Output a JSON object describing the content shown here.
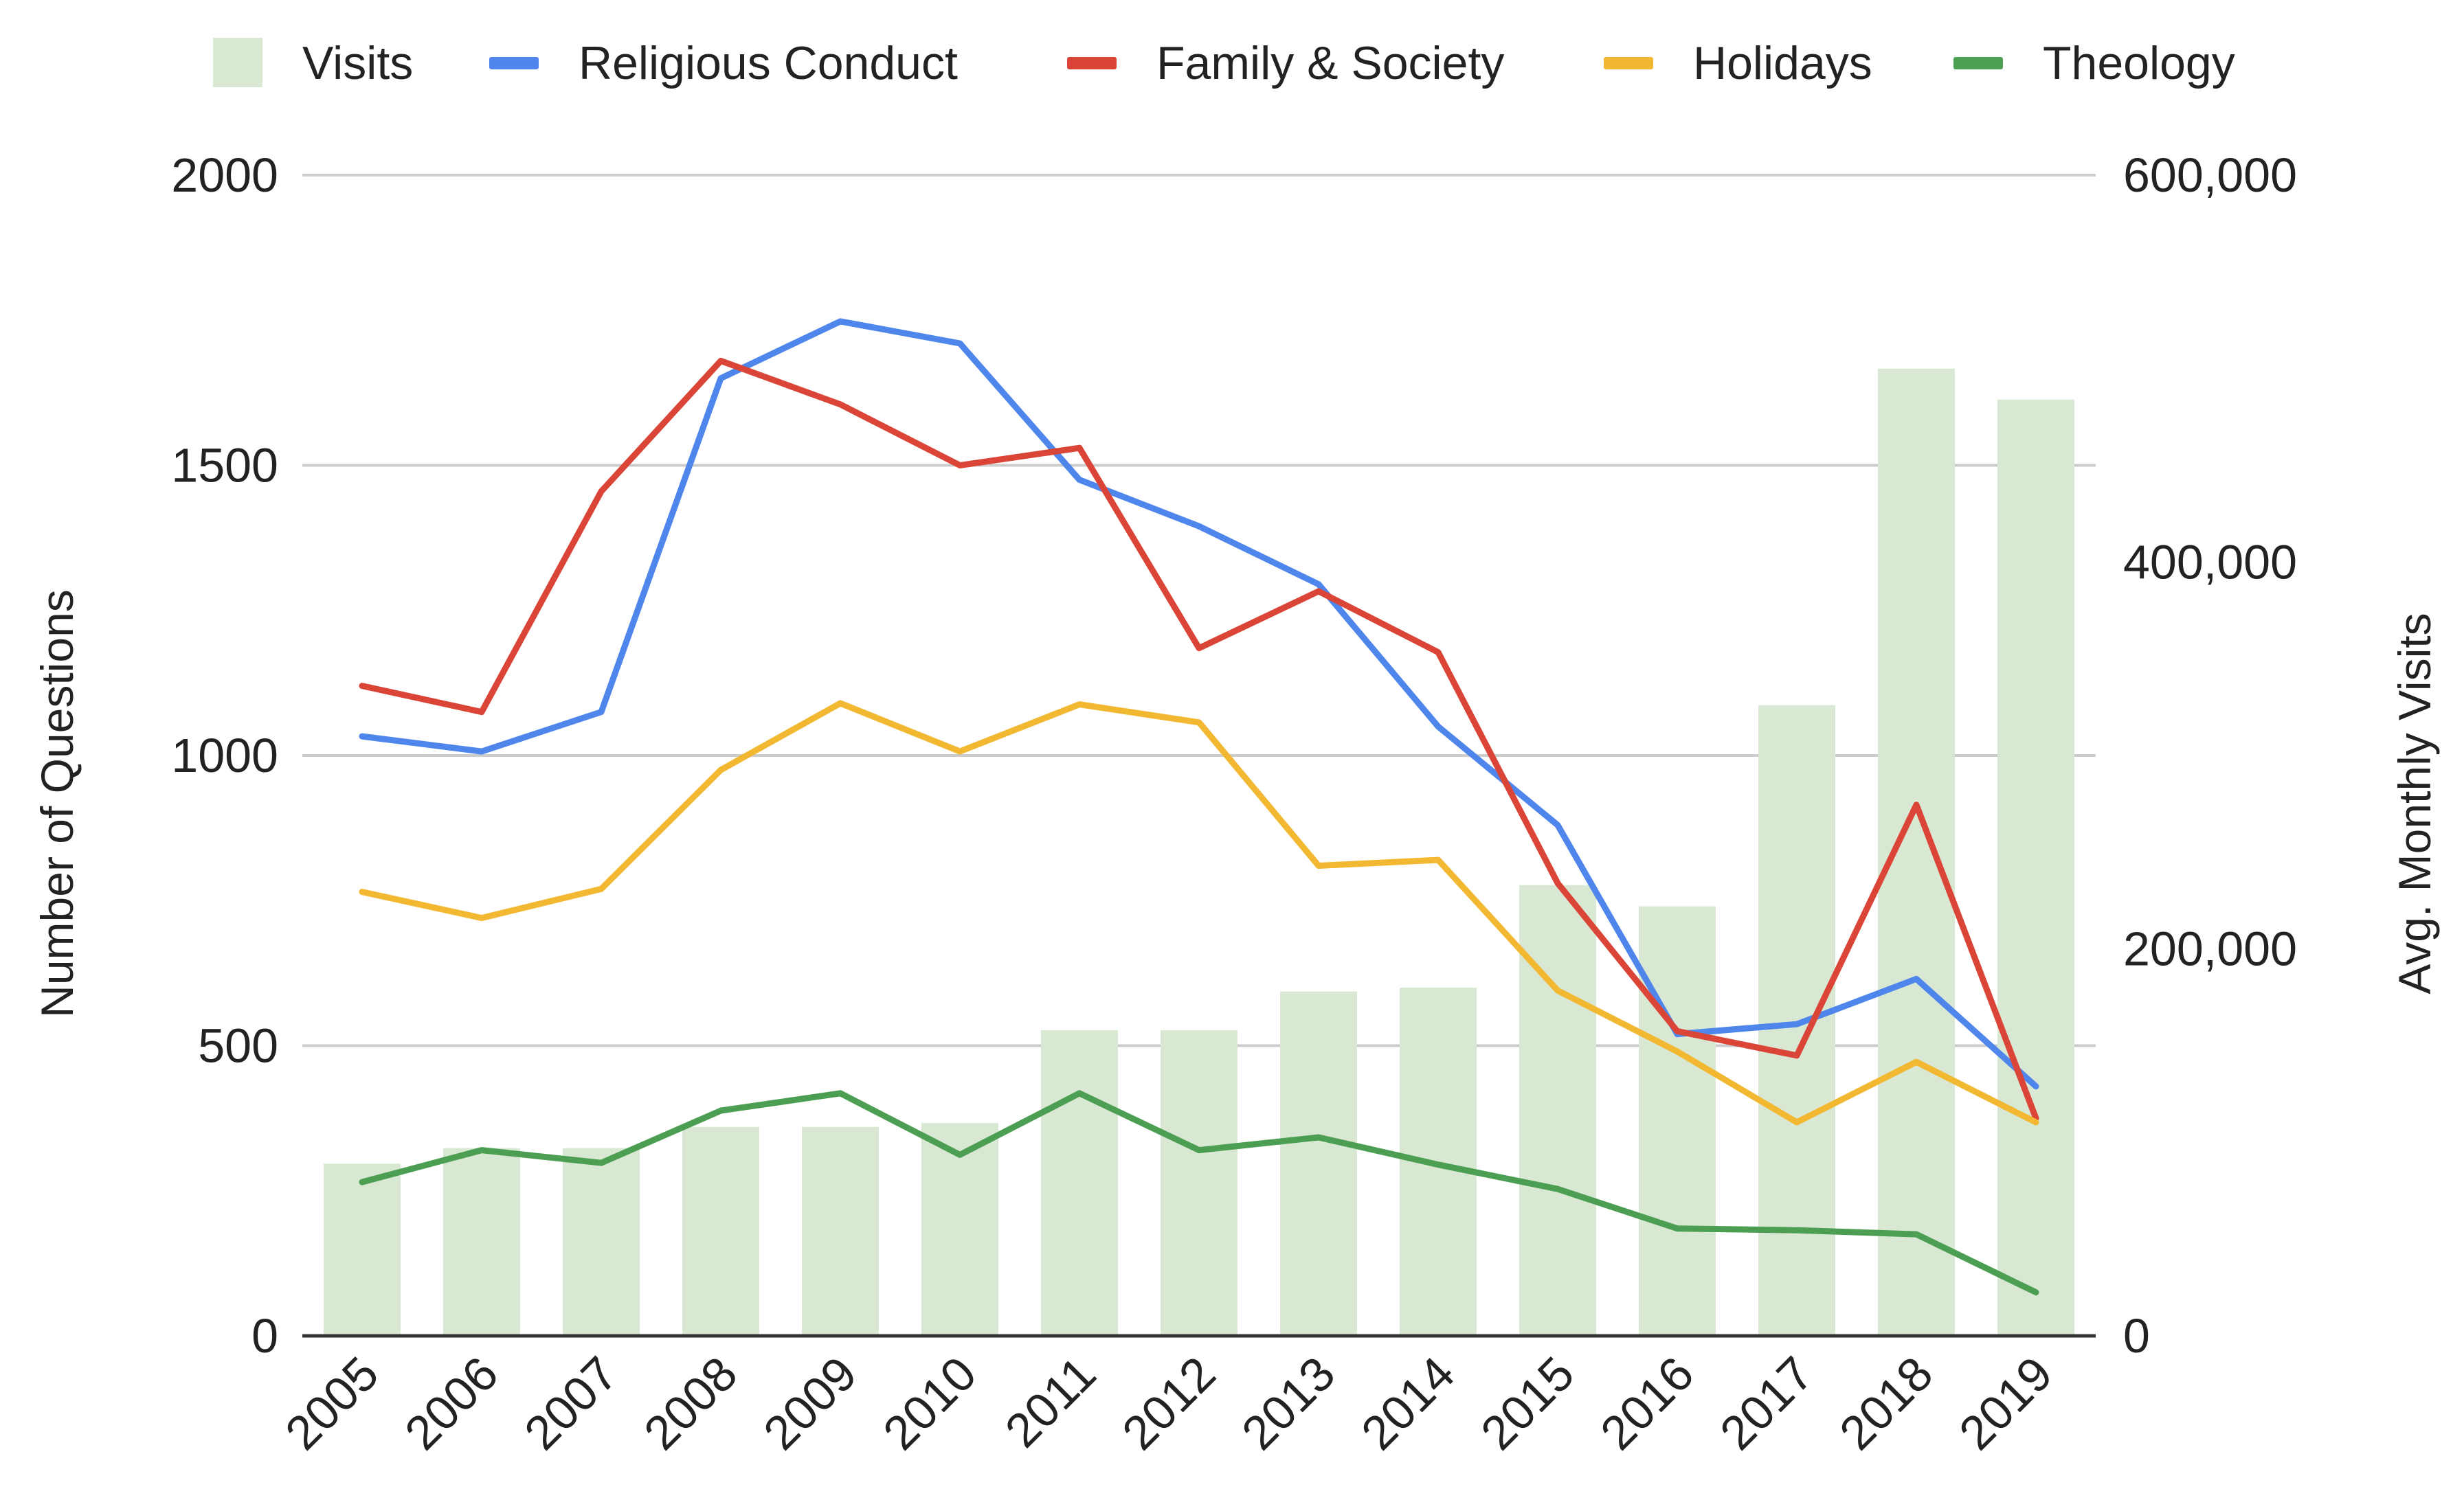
{
  "chart_data": {
    "type": "bar+line",
    "title": "",
    "categories": [
      "2005",
      "2006",
      "2007",
      "2008",
      "2009",
      "2010",
      "2011",
      "2012",
      "2013",
      "2014",
      "2015",
      "2016",
      "2017",
      "2018",
      "2019"
    ],
    "bar_series": {
      "name": "Visits",
      "axis": "right",
      "color": "#d9e8d3",
      "values": [
        89000,
        97000,
        97000,
        108000,
        108000,
        110000,
        158000,
        158000,
        178000,
        180000,
        233000,
        222000,
        326000,
        500000,
        484000
      ]
    },
    "series": [
      {
        "name": "Religious Conduct",
        "axis": "left",
        "color": "#4f86ec",
        "values": [
          1033,
          1007,
          1075,
          1650,
          1748,
          1710,
          1475,
          1395,
          1295,
          1050,
          880,
          520,
          537,
          615,
          430
        ]
      },
      {
        "name": "Family & Society",
        "axis": "left",
        "color": "#db4537",
        "values": [
          1120,
          1075,
          1455,
          1680,
          1605,
          1500,
          1530,
          1185,
          1283,
          1178,
          780,
          525,
          483,
          915,
          375
        ]
      },
      {
        "name": "Holidays",
        "axis": "left",
        "color": "#f3b832",
        "values": [
          765,
          720,
          770,
          975,
          1090,
          1007,
          1088,
          1057,
          810,
          820,
          595,
          490,
          368,
          472,
          368
        ]
      },
      {
        "name": "Theology",
        "axis": "left",
        "color": "#4c9f52",
        "values": [
          265,
          320,
          298,
          388,
          418,
          312,
          418,
          320,
          342,
          295,
          253,
          185,
          182,
          175,
          75
        ]
      }
    ],
    "legend": {
      "position": "top",
      "entries": [
        "Visits",
        "Religious Conduct",
        "Family & Society",
        "Holidays",
        "Theology"
      ]
    },
    "y_left": {
      "label": "Number of Questions",
      "ylim": [
        0,
        2000
      ],
      "ticks": [
        0,
        500,
        1000,
        1500,
        2000
      ],
      "tick_labels": [
        "0",
        "500",
        "1000",
        "1500",
        "2000"
      ]
    },
    "y_right": {
      "label": "Avg. Monthly Visits",
      "ylim": [
        0,
        600000
      ],
      "ticks": [
        0,
        200000,
        400000,
        600000
      ],
      "tick_labels": [
        "0",
        "200,000",
        "400,000",
        "600,000"
      ]
    },
    "xlabel": "",
    "grid": true
  }
}
